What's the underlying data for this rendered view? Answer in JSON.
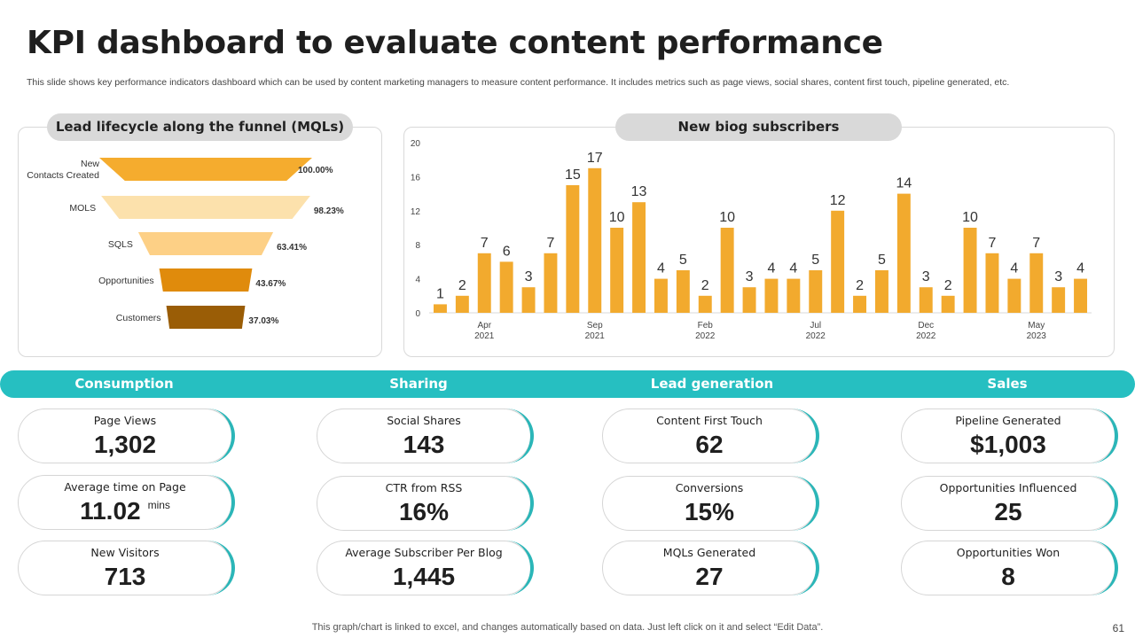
{
  "header": {
    "title": "KPI dashboard to evaluate content performance",
    "subtitle": "This slide shows key performance indicators dashboard which can be used by content marketing managers to measure content performance. It includes metrics such as page views, social shares, content first touch, pipeline generated, etc."
  },
  "funnel_panel": {
    "title": "Lead lifecycle along the funnel (MQLs)"
  },
  "bar_panel": {
    "title": "New biog subscribers"
  },
  "colors": {
    "bar": "#f2aa2e",
    "band": "#26bfc1",
    "accent_arc": "#2bb6b8",
    "funnel": [
      "#f5ac2e",
      "#fce1ac",
      "#fdd086",
      "#e08b0c",
      "#9a5d06"
    ]
  },
  "chart_data": [
    {
      "type": "funnel",
      "title": "Lead lifecycle along the funnel (MQLs)",
      "categories": [
        "New\nContacts Created",
        "MOLS",
        "SQLS",
        "Opportunities",
        "Customers"
      ],
      "values": [
        100.0,
        98.23,
        63.41,
        43.67,
        37.03
      ],
      "labels": [
        "100.00%",
        "98.23%",
        "63.41%",
        "43.67%",
        "37.03%"
      ]
    },
    {
      "type": "bar",
      "title": "New biog subscribers",
      "values": [
        1,
        2,
        7,
        6,
        3,
        7,
        15,
        17,
        10,
        13,
        4,
        5,
        2,
        10,
        3,
        4,
        4,
        5,
        12,
        2,
        5,
        14,
        3,
        2,
        10,
        7,
        4,
        7,
        3,
        4
      ],
      "x_tick_labels": [
        {
          "index": 2,
          "month": "Apr",
          "year": "2021"
        },
        {
          "index": 7,
          "month": "Sep",
          "year": "2021"
        },
        {
          "index": 12,
          "month": "Feb",
          "year": "2022"
        },
        {
          "index": 17,
          "month": "Jul",
          "year": "2022"
        },
        {
          "index": 22,
          "month": "Dec",
          "year": "2022"
        },
        {
          "index": 27,
          "month": "May",
          "year": "2023"
        }
      ],
      "yticks": [
        0,
        4,
        8,
        12,
        16,
        20
      ],
      "ylim": [
        0,
        20
      ],
      "grid": false,
      "xlabel": "",
      "ylabel": ""
    }
  ],
  "kpi_sections": [
    {
      "heading": "Consumption",
      "cards": [
        {
          "label": "Page Views",
          "value": "1,302",
          "unit": ""
        },
        {
          "label": "Average time on Page",
          "value": "11.02",
          "unit": "mins"
        },
        {
          "label": "New Visitors",
          "value": "713",
          "unit": ""
        }
      ]
    },
    {
      "heading": "Sharing",
      "cards": [
        {
          "label": "Social Shares",
          "value": "143",
          "unit": ""
        },
        {
          "label": "CTR from RSS",
          "value": "16%",
          "unit": ""
        },
        {
          "label": "Average Subscriber Per Blog",
          "value": "1,445",
          "unit": ""
        }
      ]
    },
    {
      "heading": "Lead generation",
      "cards": [
        {
          "label": "Content  First Touch",
          "value": "62",
          "unit": ""
        },
        {
          "label": "Conversions",
          "value": "15%",
          "unit": ""
        },
        {
          "label": "MQLs Generated",
          "value": "27",
          "unit": ""
        }
      ]
    },
    {
      "heading": "Sales",
      "cards": [
        {
          "label": "Pipeline Generated",
          "value": "$1,003",
          "unit": ""
        },
        {
          "label": "Opportunities Influenced",
          "value": "25",
          "unit": ""
        },
        {
          "label": "Opportunities Won",
          "value": "8",
          "unit": ""
        }
      ]
    }
  ],
  "footer": {
    "note": "This graph/chart is linked to excel,  and changes automatically based on data. Just left click on it and select “Edit Data”.",
    "page_number": "61"
  }
}
